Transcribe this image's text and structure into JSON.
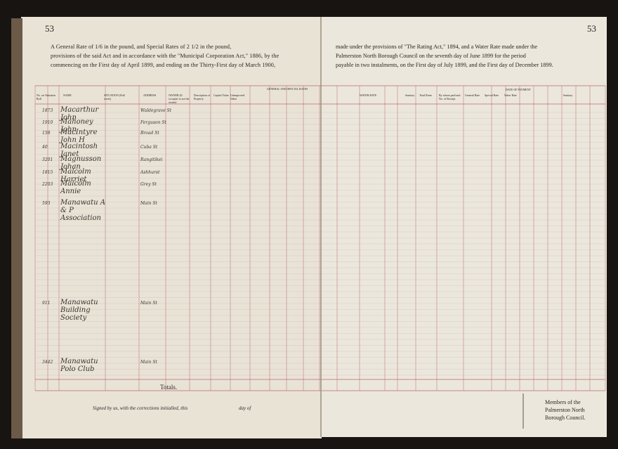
{
  "pages": {
    "left_number": "53",
    "right_number": "53"
  },
  "heading": {
    "left_lines": [
      "A General Rate of 1/6 in the pound, and Special Rates of 2 1/2 in the pound,",
      "provisions of the said Act and in accordance with the \"Municipal Corporation Act,\" 1886, by the",
      "commencing on the First day of April 1899, and ending on the Thirty-First day of March 1900,"
    ],
    "right_lines": [
      "made under the provisions of \"The Rating Act,\" 1894, and a Water Rate made under the",
      "Palmerston North Borough Council on the seventh day of June 1899 for the period",
      "payable in two instalments, on the First day of July 1899, and the First day of December 1899."
    ]
  },
  "columns": {
    "left": [
      "No. on Valuation Roll",
      "NAME",
      "SITUATION (Full street)",
      "ADDRESS",
      "OWNER (If occupier is not the owner)",
      "Description of Property",
      "Capital Value",
      "Unimproved Value",
      "GENERAL AND SPECIAL RATES"
    ],
    "right": [
      "WATER RATE",
      "Sanitary",
      "Total Rates",
      "By whom paid and No. of Receipt",
      "DATE OF PAYMENT",
      "General Rate",
      "Special Rate",
      "Water Rate",
      "Sanitary"
    ]
  },
  "rows": [
    {
      "number": "1873",
      "name": "Macarthur John",
      "address": "Waldegrave St"
    },
    {
      "number": "1910",
      "name": "Mahoney John",
      "address": "Ferguson St"
    },
    {
      "number": "158",
      "name": "MacIntyre John H",
      "address": "Broad St"
    },
    {
      "number": "40",
      "name": "Macintosh Janet",
      "address": "Cuba St"
    },
    {
      "number": "3201",
      "name": "Magnusson Johan",
      "address": "Rangitikei"
    },
    {
      "number": "1815",
      "name": "Malcolm Harriet",
      "address": "Ashhurst"
    },
    {
      "number": "2203",
      "name": "Malcolm Annie",
      "address": "Grey St"
    },
    {
      "number": "593",
      "name": "Manawatu A & P Association",
      "address": "Main St"
    },
    {
      "number": "911",
      "name": "Manawatu Building Society",
      "address": "Main St"
    },
    {
      "number": "3442",
      "name": "Manawatu Polo Club",
      "address": "Main St"
    }
  ],
  "totals_label": "Totals.",
  "footer": {
    "signed": "Signed by us, with the corrections initialled, this",
    "day_of": "day of",
    "members": [
      "Members of the",
      "Palmerston North",
      "Borough Council."
    ]
  }
}
